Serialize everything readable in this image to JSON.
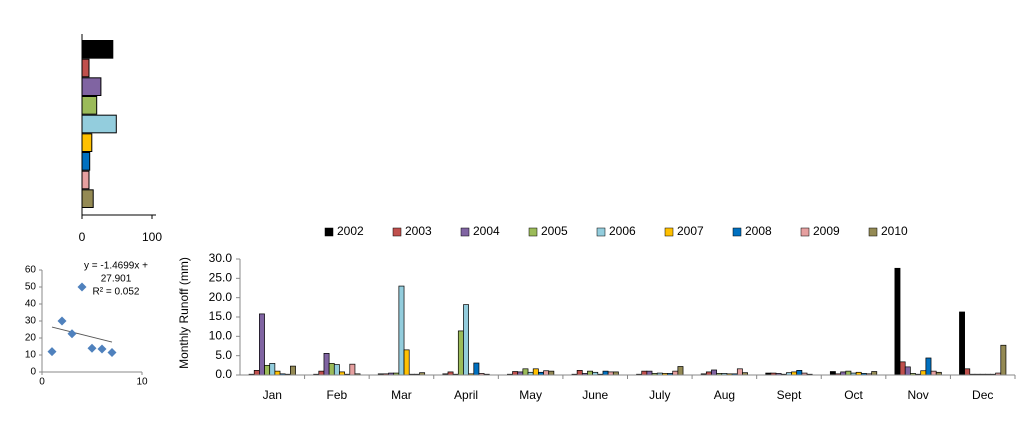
{
  "chart_data": [
    {
      "type": "hbar",
      "values": [
        44,
        10,
        27,
        21,
        49,
        14,
        11,
        10,
        16
      ],
      "colors": [
        "#000000",
        "#c0504d",
        "#8064a2",
        "#9bbb59",
        "#93cddd",
        "#ffc000",
        "#0070c0",
        "#e6a0a0",
        "#948a54"
      ],
      "xlim": [
        0,
        100
      ],
      "xticks": [
        0,
        100
      ]
    },
    {
      "type": "scatter",
      "x": [
        1,
        2,
        3,
        4,
        5,
        6,
        7
      ],
      "values": [
        12,
        30,
        22.5,
        50,
        14,
        13.5,
        11.5
      ],
      "color": "#4f81bd",
      "xlim": [
        0,
        10
      ],
      "xticks": [
        0,
        10
      ],
      "ylim": [
        0,
        60
      ],
      "yticks": [
        0,
        10,
        20,
        30,
        40,
        50,
        60
      ],
      "trendline": {
        "slope": -1.4699,
        "intercept": 27.901
      },
      "annotations": [
        "y = -1.4699x +",
        "27.901",
        "R² = 0.052"
      ]
    },
    {
      "type": "bar",
      "y_label": "Monthly  Runoff (mm)",
      "categories": [
        "Jan",
        "Feb",
        "Mar",
        "April",
        "May",
        "June",
        "July",
        "Aug",
        "Sept",
        "Oct",
        "Nov",
        "Dec"
      ],
      "series": [
        {
          "name": "2002",
          "color": "#000000",
          "values": [
            0.2,
            0.2,
            0.3,
            0.3,
            0.2,
            0.2,
            0.2,
            0.3,
            0.5,
            0.9,
            27.6,
            16.3
          ]
        },
        {
          "name": "2003",
          "color": "#c0504d",
          "values": [
            1.2,
            1.0,
            0.3,
            0.8,
            0.9,
            1.2,
            1.0,
            0.8,
            0.5,
            0.3,
            3.4,
            1.6
          ]
        },
        {
          "name": "2004",
          "color": "#8064a2",
          "values": [
            15.8,
            5.6,
            0.5,
            0.2,
            0.8,
            0.4,
            1.0,
            1.3,
            0.4,
            0.8,
            2.1,
            0.2
          ]
        },
        {
          "name": "2005",
          "color": "#9bbb59",
          "values": [
            2.5,
            3.0,
            0.5,
            11.4,
            1.6,
            1.0,
            0.4,
            0.4,
            0.2,
            1.0,
            0.4,
            0.2
          ]
        },
        {
          "name": "2006",
          "color": "#93cddd",
          "values": [
            3.0,
            2.7,
            23.0,
            18.2,
            0.7,
            0.7,
            0.5,
            0.4,
            0.6,
            0.5,
            0.2,
            0.2
          ]
        },
        {
          "name": "2007",
          "color": "#ffc000",
          "values": [
            1.0,
            0.8,
            6.5,
            0.3,
            1.6,
            0.2,
            0.4,
            0.3,
            0.8,
            0.7,
            1.1,
            0.2
          ]
        },
        {
          "name": "2008",
          "color": "#0070c0",
          "values": [
            0.3,
            0.2,
            0.2,
            3.1,
            0.7,
            1.0,
            0.4,
            0.3,
            1.2,
            0.4,
            4.4,
            0.2
          ]
        },
        {
          "name": "2009",
          "color": "#e6a0a0",
          "values": [
            0.2,
            2.8,
            0.2,
            0.4,
            1.1,
            0.8,
            1.0,
            1.6,
            0.5,
            0.3,
            1.0,
            0.5
          ]
        },
        {
          "name": "2010",
          "color": "#948a54",
          "values": [
            2.3,
            0.3,
            0.6,
            0.2,
            1.0,
            0.8,
            2.2,
            0.6,
            0.2,
            0.9,
            0.7,
            7.7
          ]
        }
      ],
      "ylim": [
        0,
        30
      ],
      "yticks": [
        {
          "value": 0,
          "label": "0.0"
        },
        {
          "value": 5,
          "label": "5.0"
        },
        {
          "value": 10,
          "label": "10.0"
        },
        {
          "value": 15,
          "label": "15.0"
        },
        {
          "value": 20,
          "label": "20.0"
        },
        {
          "value": 25,
          "label": "25.0"
        },
        {
          "value": 30,
          "label": "30.0"
        }
      ]
    }
  ]
}
